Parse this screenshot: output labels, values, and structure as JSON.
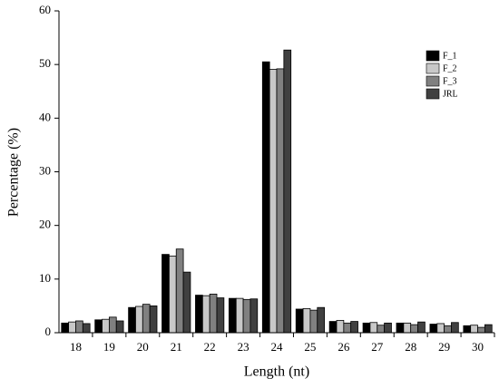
{
  "chart_data": {
    "type": "bar",
    "xlabel": "Length (nt)",
    "ylabel": "Percentage (%)",
    "categories": [
      "18",
      "19",
      "20",
      "21",
      "22",
      "23",
      "24",
      "25",
      "26",
      "27",
      "28",
      "29",
      "30"
    ],
    "series": [
      {
        "name": "F_1",
        "color": "#000000",
        "values": [
          1.8,
          2.4,
          4.7,
          14.6,
          7.0,
          6.4,
          50.5,
          4.4,
          2.1,
          1.8,
          1.8,
          1.6,
          1.3
        ]
      },
      {
        "name": "F_2",
        "color": "#c8c8c8",
        "values": [
          2.0,
          2.5,
          4.9,
          14.3,
          6.9,
          6.4,
          49.1,
          4.5,
          2.3,
          1.9,
          1.8,
          1.7,
          1.4
        ]
      },
      {
        "name": "F_3",
        "color": "#808080",
        "values": [
          2.2,
          2.9,
          5.3,
          15.6,
          7.2,
          6.2,
          49.2,
          4.2,
          1.8,
          1.4,
          1.5,
          1.3,
          1.0
        ]
      },
      {
        "name": "JRL",
        "color": "#404040",
        "values": [
          1.7,
          2.2,
          5.0,
          11.3,
          6.5,
          6.3,
          52.7,
          4.7,
          2.1,
          1.8,
          2.0,
          1.9,
          1.5
        ]
      }
    ],
    "ylim": [
      0,
      60
    ],
    "yticks": [
      0,
      10,
      20,
      30,
      40,
      50,
      60
    ],
    "legend": "upper right"
  }
}
